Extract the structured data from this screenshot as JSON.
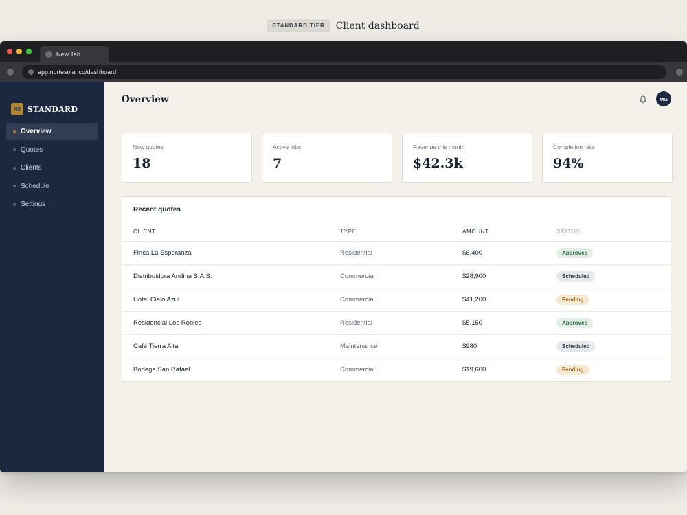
{
  "caption": {
    "tier": "STANDARD TIER",
    "title": "Client dashboard"
  },
  "browser": {
    "tab_title": "New Tab",
    "url": "app.nortesolar.co/dashboard"
  },
  "brand": {
    "mark": "NS",
    "name": "STANDARD"
  },
  "sidebar": {
    "items": [
      {
        "label": "Overview",
        "active": true
      },
      {
        "label": "Quotes",
        "active": false
      },
      {
        "label": "Clients",
        "active": false
      },
      {
        "label": "Schedule",
        "active": false
      },
      {
        "label": "Settings",
        "active": false
      }
    ]
  },
  "header": {
    "title": "Overview",
    "avatar_initials": "MG",
    "notification_icon": "bell-icon"
  },
  "kpis": [
    {
      "label": "New quotes",
      "value": "18"
    },
    {
      "label": "Active jobs",
      "value": "7"
    },
    {
      "label": "Revenue this month",
      "value": "$42.3k"
    },
    {
      "label": "Completion rate",
      "value": "94%"
    }
  ],
  "quotes": {
    "title": "Recent quotes",
    "columns": [
      "CLIENT",
      "TYPE",
      "AMOUNT",
      "STATUS"
    ],
    "rows": [
      {
        "client": "Finca La Esperanza",
        "type": "Residential",
        "amount": "$6,400",
        "status": "Approved"
      },
      {
        "client": "Distribuidora Andina S.A.S.",
        "type": "Commercial",
        "amount": "$28,900",
        "status": "Scheduled"
      },
      {
        "client": "Hotel Cielo Azul",
        "type": "Commercial",
        "amount": "$41,200",
        "status": "Pending"
      },
      {
        "client": "Residencial Los Robles",
        "type": "Residential",
        "amount": "$5,150",
        "status": "Approved"
      },
      {
        "client": "Café Tierra Alta",
        "type": "Maintenance",
        "amount": "$980",
        "status": "Scheduled"
      },
      {
        "client": "Bodega San Rafael",
        "type": "Commercial",
        "amount": "$19,600",
        "status": "Pending"
      }
    ]
  },
  "colors": {
    "sidebar": "#1c2840",
    "accent": "#b08838",
    "background": "#f4f0ea"
  }
}
